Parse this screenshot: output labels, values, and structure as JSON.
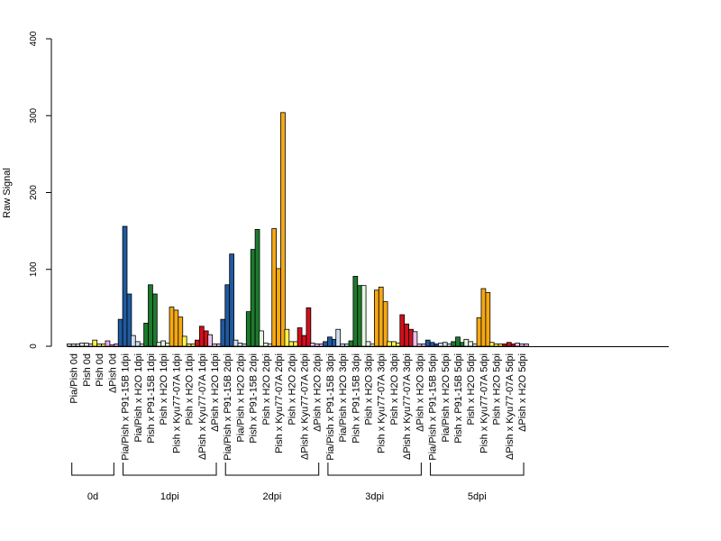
{
  "chart_data": {
    "type": "bar",
    "title": "",
    "xlabel": "",
    "ylabel": "Raw Signal",
    "ylim": [
      0,
      400
    ],
    "y_ticks": [
      0,
      100,
      200,
      300,
      400
    ],
    "grid": false,
    "legend": "none",
    "colors": {
      "Pia/Pish": "#e0e0e0",
      "Pish": "#fff24a",
      "ΔPish": "#f0a8f0",
      "Pia/Pish x P91-15B": "#1f5aa0",
      "Pia/Pish x H2O": "#d0ddf0",
      "Pish x P91-15B": "#1c7a2c",
      "Pish x H2O": "#e6f6e0",
      "Pish x Kyu77-07A": "#f5a814",
      "ΔPish x Kyu77-07A": "#d0101c",
      "ΔPish x H2O": "#ecc0ec"
    },
    "categories": [
      "Pia/Pish 0d",
      "Pish 0d",
      "Pish 0d",
      "ΔPish 0d",
      "Pia/Pish x P91-15B 1dpi",
      "Pia/Pish x H2O 1dpi",
      "Pish x P91-15B 1dpi",
      "Pish x H2O 1dpi",
      "Pish x Kyu77-07A 1dpi",
      "Pish x H2O 1dpi",
      "ΔPish x Kyu77-07A 1dpi",
      "ΔPish x H2O 1dpi",
      "Pia/Pish x P91-15B 2dpi",
      "Pia/Pish x H2O 2dpi",
      "Pish x P91-15B 2dpi",
      "Pish x H2O 2dpi",
      "Pish x Kyu77-07A 2dpi",
      "Pish x H2O 2dpi",
      "ΔPish x Kyu77-07A 2dpi",
      "ΔPish x H2O 2dpi",
      "Pia/Pish x P91-15B 3dpi",
      "Pia/Pish x H2O 3dpi",
      "Pish x P91-15B 3dpi",
      "Pish x H2O 3dpi",
      "Pish x Kyu77-07A 3dpi",
      "Pish x H2O 3dpi",
      "ΔPish x Kyu77-07A 3dpi",
      "ΔPish x H2O 3dpi",
      "Pia/Pish x P91-15B 5dpi",
      "Pia/Pish x H2O 5dpi",
      "Pish x P91-15B 5dpi",
      "Pish x H2O 5dpi",
      "Pish x Kyu77-07A 5dpi",
      "Pish x H2O 5dpi",
      "ΔPish x Kyu77-07A 5dpi",
      "ΔPish x H2O 5dpi"
    ],
    "groups": [
      {
        "label": "Pia/Pish 0d",
        "color": "#e0e0e0",
        "values": [
          3,
          3,
          3
        ]
      },
      {
        "label": "Pish 0d",
        "color": "#e0e0e0",
        "values": [
          4,
          4,
          3
        ]
      },
      {
        "label": "Pish 0d",
        "color": "#fff24a",
        "values": [
          8,
          3,
          3
        ]
      },
      {
        "label": "ΔPish 0d",
        "color": "#f0a8f0",
        "values": [
          7,
          2,
          3
        ]
      },
      {
        "label": "Pia/Pish x P91-15B 1dpi",
        "color": "#1f5aa0",
        "values": [
          35,
          156,
          68
        ]
      },
      {
        "label": "Pia/Pish x H2O 1dpi",
        "color": "#d0ddf0",
        "values": [
          14,
          6,
          3
        ]
      },
      {
        "label": "Pish x P91-15B 1dpi",
        "color": "#1c7a2c",
        "values": [
          30,
          80,
          68
        ]
      },
      {
        "label": "Pish x H2O 1dpi",
        "color": "#e6f6e0",
        "values": [
          5,
          7,
          4
        ]
      },
      {
        "label": "Pish x Kyu77-07A 1dpi",
        "color": "#f5a814",
        "values": [
          51,
          47,
          38
        ]
      },
      {
        "label": "Pish x H2O 1dpi",
        "color": "#fff24a",
        "values": [
          13,
          3,
          3
        ]
      },
      {
        "label": "ΔPish x Kyu77-07A 1dpi",
        "color": "#d0101c",
        "values": [
          8,
          26,
          20
        ]
      },
      {
        "label": "ΔPish x H2O 1dpi",
        "color": "#ecc0ec",
        "values": [
          15,
          3,
          3
        ]
      },
      {
        "label": "Pia/Pish x P91-15B 2dpi",
        "color": "#1f5aa0",
        "values": [
          35,
          80,
          120
        ]
      },
      {
        "label": "Pia/Pish x H2O 2dpi",
        "color": "#d0ddf0",
        "values": [
          8,
          4,
          3
        ]
      },
      {
        "label": "Pish x P91-15B 2dpi",
        "color": "#1c7a2c",
        "values": [
          45,
          126,
          152
        ]
      },
      {
        "label": "Pish x H2O 2dpi",
        "color": "#e6f6e0",
        "values": [
          20,
          4,
          3
        ]
      },
      {
        "label": "Pish x Kyu77-07A 2dpi",
        "color": "#f5a814",
        "values": [
          153,
          101,
          304
        ]
      },
      {
        "label": "Pish x H2O 2dpi",
        "color": "#fff24a",
        "values": [
          22,
          6,
          6
        ]
      },
      {
        "label": "ΔPish x Kyu77-07A 2dpi",
        "color": "#d0101c",
        "values": [
          24,
          14,
          50
        ]
      },
      {
        "label": "ΔPish x H2O 2dpi",
        "color": "#ecc0ec",
        "values": [
          4,
          3,
          3
        ]
      },
      {
        "label": "Pia/Pish x P91-15B 3dpi",
        "color": "#1f5aa0",
        "values": [
          6,
          12,
          9
        ]
      },
      {
        "label": "Pia/Pish x H2O 3dpi",
        "color": "#d0ddf0",
        "values": [
          22,
          3,
          3
        ]
      },
      {
        "label": "Pish x P91-15B 3dpi",
        "color": "#1c7a2c",
        "values": [
          7,
          91,
          79
        ]
      },
      {
        "label": "Pish x H2O 3dpi",
        "color": "#e6f6e0",
        "values": [
          79,
          6,
          3
        ]
      },
      {
        "label": "Pish x Kyu77-07A 3dpi",
        "color": "#f5a814",
        "values": [
          73,
          77,
          58
        ]
      },
      {
        "label": "Pish x H2O 3dpi",
        "color": "#fff24a",
        "values": [
          6,
          6,
          4
        ]
      },
      {
        "label": "ΔPish x Kyu77-07A 3dpi",
        "color": "#d0101c",
        "values": [
          41,
          29,
          22
        ]
      },
      {
        "label": "ΔPish x H2O 3dpi",
        "color": "#ecc0ec",
        "values": [
          19,
          3,
          3
        ]
      },
      {
        "label": "Pia/Pish x P91-15B 5dpi",
        "color": "#1f5aa0",
        "values": [
          8,
          5,
          3
        ]
      },
      {
        "label": "Pia/Pish x H2O 5dpi",
        "color": "#d0ddf0",
        "values": [
          4,
          5,
          3
        ]
      },
      {
        "label": "Pish x P91-15B 5dpi",
        "color": "#1c7a2c",
        "values": [
          6,
          12,
          5
        ]
      },
      {
        "label": "Pish x H2O 5dpi",
        "color": "#e6f6e0",
        "values": [
          9,
          6,
          3
        ]
      },
      {
        "label": "Pish x Kyu77-07A 5dpi",
        "color": "#f5a814",
        "values": [
          37,
          75,
          70
        ]
      },
      {
        "label": "Pish x H2O 5dpi",
        "color": "#fff24a",
        "values": [
          5,
          3,
          3
        ]
      },
      {
        "label": "ΔPish x Kyu77-07A 5dpi",
        "color": "#d0101c",
        "values": [
          3,
          5,
          3
        ]
      },
      {
        "label": "ΔPish x H2O 5dpi",
        "color": "#ecc0ec",
        "values": [
          4,
          3,
          3
        ]
      }
    ],
    "brackets": [
      {
        "label": "0d",
        "first_group": 0,
        "last_group": 3
      },
      {
        "label": "1dpi",
        "first_group": 4,
        "last_group": 11
      },
      {
        "label": "2dpi",
        "first_group": 12,
        "last_group": 19
      },
      {
        "label": "3dpi",
        "first_group": 20,
        "last_group": 27
      },
      {
        "label": "5dpi",
        "first_group": 28,
        "last_group": 35
      }
    ]
  }
}
